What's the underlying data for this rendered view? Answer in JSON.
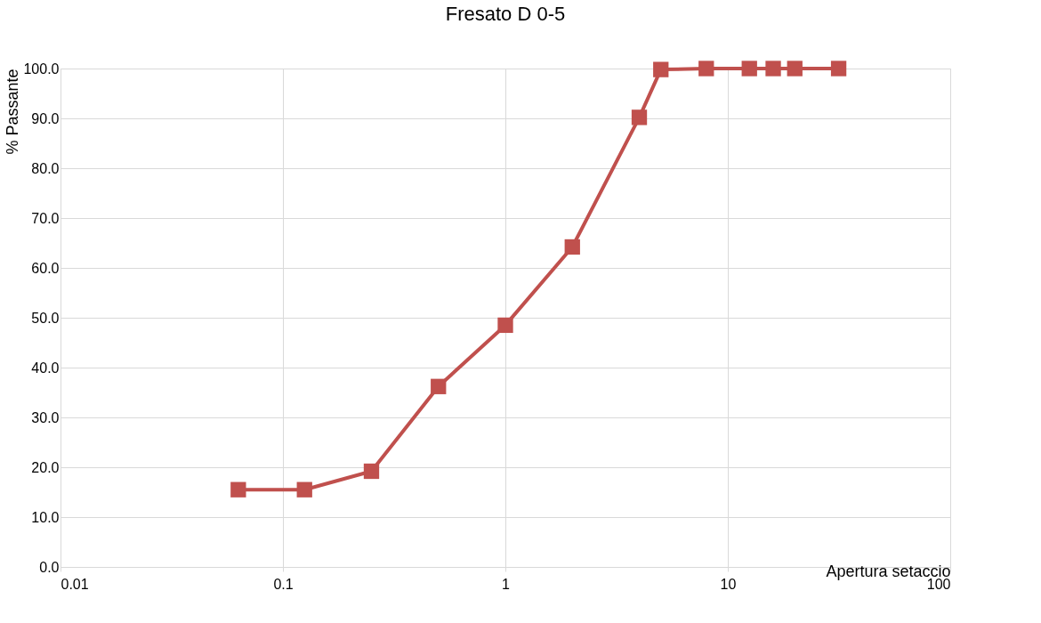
{
  "chart_data": {
    "type": "line",
    "title": "Fresato D 0-5",
    "xlabel": "Apertura setaccio",
    "ylabel": "% Passante",
    "x": [
      0.063,
      0.125,
      0.25,
      0.5,
      1,
      2,
      4,
      5,
      8,
      12.5,
      16,
      20,
      31.5
    ],
    "series": [
      {
        "color": "#c0504d",
        "values": [
          15.5,
          15.5,
          19.2,
          36.2,
          48.5,
          64.2,
          90.2,
          99.8,
          100,
          100,
          100,
          100,
          100
        ]
      }
    ],
    "log": "x",
    "xlim": [
      0.01,
      100
    ],
    "xticks": [
      0.01,
      0.1,
      1,
      10,
      100
    ],
    "ylim": [
      0,
      100
    ],
    "yticks": [
      {
        "value": 0,
        "label": "0.0"
      },
      {
        "value": 10,
        "label": "10.0"
      },
      {
        "value": 20,
        "label": "20.0"
      },
      {
        "value": 30,
        "label": "30.0"
      },
      {
        "value": 40,
        "label": "40.0"
      },
      {
        "value": 50,
        "label": "50.0"
      },
      {
        "value": 60,
        "label": "60.0"
      },
      {
        "value": 70,
        "label": "70.0"
      },
      {
        "value": 80,
        "label": "80.0"
      },
      {
        "value": 90,
        "label": "90.0"
      },
      {
        "value": 100,
        "label": "100.0"
      }
    ],
    "grid": true,
    "marker": "square",
    "line_style": "solid"
  }
}
